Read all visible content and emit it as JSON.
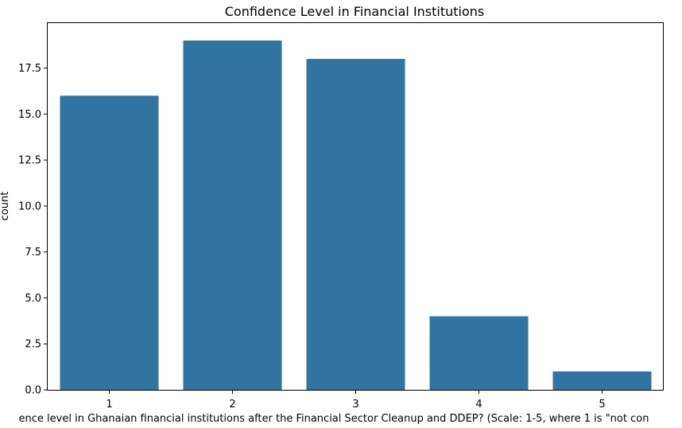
{
  "chart_data": {
    "type": "bar",
    "title": "Confidence Level in Financial Institutions",
    "xlabel": "ence level in Ghanaian financial institutions after the Financial Sector Cleanup and DDEP? (Scale: 1-5, where 1 is \"not con",
    "ylabel": "count",
    "categories": [
      "1",
      "2",
      "3",
      "4",
      "5"
    ],
    "values": [
      16,
      19,
      18,
      4,
      1
    ],
    "ylim": [
      0,
      19.95
    ],
    "yticks": [
      0.0,
      2.5,
      5.0,
      7.5,
      10.0,
      12.5,
      15.0,
      17.5
    ],
    "ytick_labels": [
      "0.0",
      "2.5",
      "5.0",
      "7.5",
      "10.0",
      "12.5",
      "15.0",
      "17.5"
    ],
    "bar_color": "#3274a1",
    "grid": false,
    "legend": "none"
  }
}
